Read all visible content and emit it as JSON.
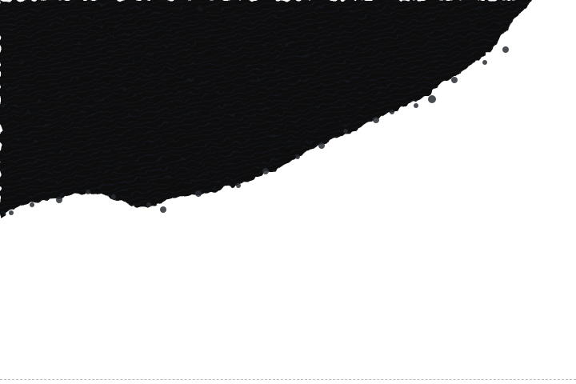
{
  "artwork": {
    "subject": "brush-stroke",
    "ink_color": "#0a0c10",
    "edge_color": "#2a2d33",
    "background_color": "#ffffff",
    "border_color": "#b8b8b8"
  }
}
